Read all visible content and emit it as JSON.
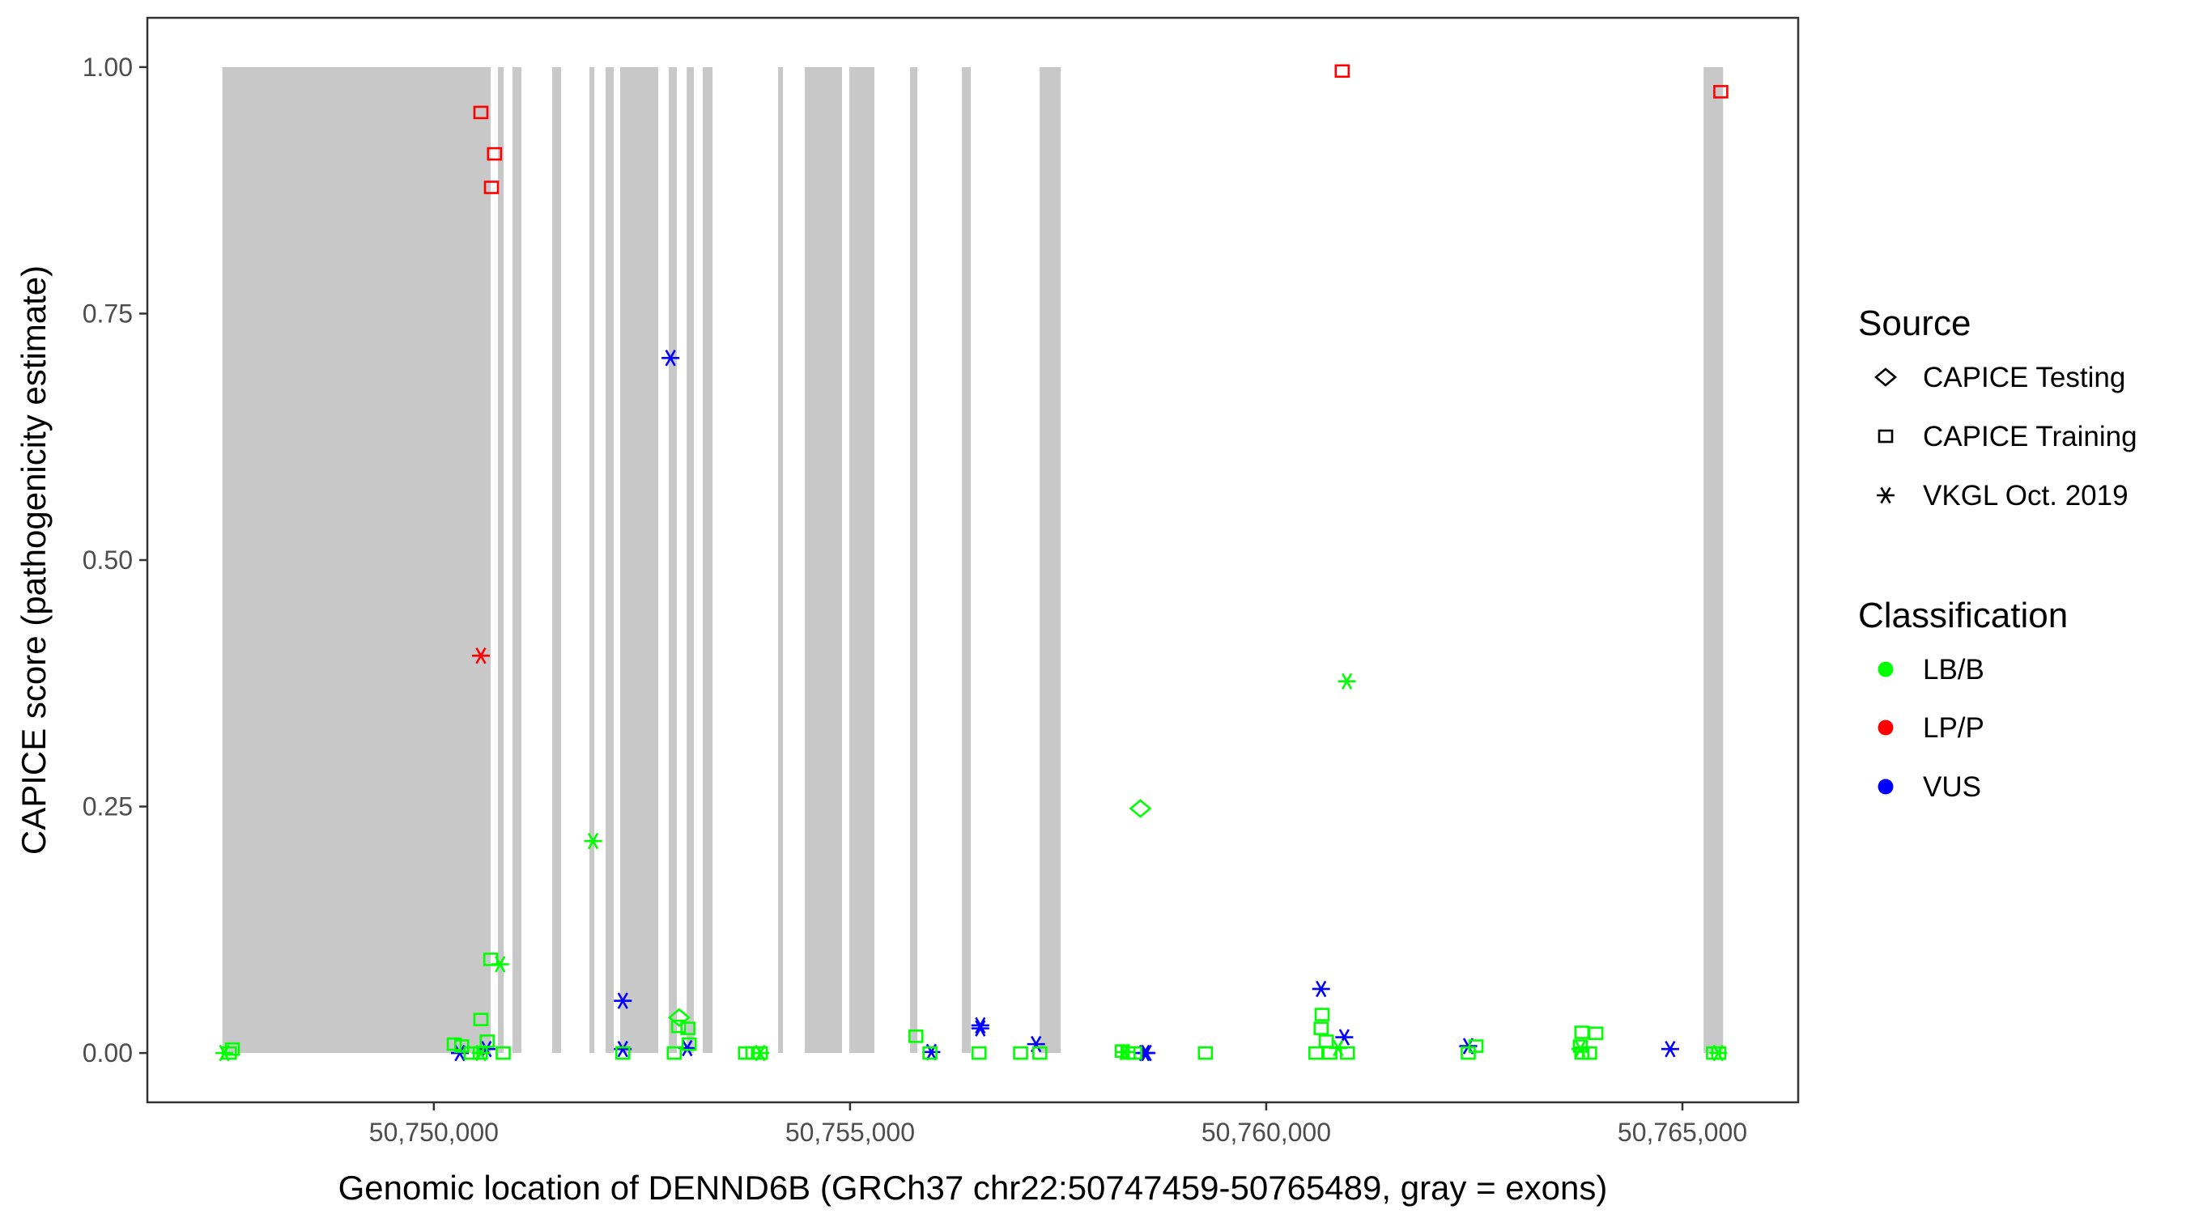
{
  "chart_data": {
    "type": "scatter",
    "title": "",
    "xlabel": "Genomic location of DENND6B (GRCh37 chr22:50747459-50765489, gray = exons)",
    "ylabel": "CAPICE score (pathogenicity estimate)",
    "xlim": [
      50746558,
      50766391
    ],
    "ylim": [
      -0.05,
      1.05
    ],
    "x_ticks": [
      50750000,
      50755000,
      50760000,
      50765000
    ],
    "x_tick_labels": [
      "50,750,000",
      "50,755,000",
      "50,760,000",
      "50,765,000"
    ],
    "y_ticks": [
      0,
      0.25,
      0.5,
      0.75,
      1.0
    ],
    "y_tick_labels": [
      "0.00",
      "0.25",
      "0.50",
      "0.75",
      "1.00"
    ],
    "grid": false,
    "legend_placement": "right",
    "exon_color": "#c8c8c8",
    "exons": [
      [
        50747459,
        50750683
      ],
      [
        50750770,
        50750838
      ],
      [
        50750945,
        50751052
      ],
      [
        50751422,
        50751529
      ],
      [
        50751869,
        50751928
      ],
      [
        50752064,
        50752161
      ],
      [
        50752239,
        50752696
      ],
      [
        50752823,
        50752920
      ],
      [
        50753037,
        50753124
      ],
      [
        50753231,
        50753348
      ],
      [
        50754136,
        50754194
      ],
      [
        50754457,
        50754904
      ],
      [
        50754992,
        50755293
      ],
      [
        50755721,
        50755809
      ],
      [
        50756344,
        50756451
      ],
      [
        50757278,
        50757531
      ],
      [
        50765254,
        50765489
      ]
    ],
    "legend": {
      "source_title": "Source",
      "sources": [
        {
          "key": "testing",
          "label": "CAPICE Testing",
          "shape": "diamond"
        },
        {
          "key": "training",
          "label": "CAPICE Training",
          "shape": "square"
        },
        {
          "key": "vkgl",
          "label": "VKGL Oct. 2019",
          "shape": "asterisk"
        }
      ],
      "class_title": "Classification",
      "classes": [
        {
          "key": "LB/B",
          "label": "LB/B",
          "color": "#00ff00"
        },
        {
          "key": "LP/P",
          "label": "LP/P",
          "color": "#ff0000"
        },
        {
          "key": "VUS",
          "label": "VUS",
          "color": "#0000ff"
        }
      ]
    },
    "points": [
      [
        50750565,
        0.954,
        "training",
        "LP/P"
      ],
      [
        50750729,
        0.912,
        "training",
        "LP/P"
      ],
      [
        50750692,
        0.878,
        "training",
        "LP/P"
      ],
      [
        50760913,
        0.996,
        "training",
        "LP/P"
      ],
      [
        50765461,
        0.975,
        "training",
        "LP/P"
      ],
      [
        50750565,
        0.403,
        "vkgl",
        "LP/P"
      ],
      [
        50752843,
        0.705,
        "vkgl",
        "VUS"
      ],
      [
        50752270,
        0.053,
        "vkgl",
        "VUS"
      ],
      [
        50750312,
        0.0,
        "vkgl",
        "VUS"
      ],
      [
        50750632,
        0.004,
        "vkgl",
        "VUS"
      ],
      [
        50752270,
        0.004,
        "vkgl",
        "VUS"
      ],
      [
        50753044,
        0.005,
        "vkgl",
        "VUS"
      ],
      [
        50755977,
        0.001,
        "vkgl",
        "VUS"
      ],
      [
        50756565,
        0.028,
        "vkgl",
        "VUS"
      ],
      [
        50756565,
        0.025,
        "vkgl",
        "VUS"
      ],
      [
        50757235,
        0.009,
        "vkgl",
        "VUS"
      ],
      [
        50758537,
        0.0,
        "vkgl",
        "VUS"
      ],
      [
        50758562,
        0.0,
        "vkgl",
        "VUS"
      ],
      [
        50760659,
        0.065,
        "vkgl",
        "VUS"
      ],
      [
        50760938,
        0.016,
        "vkgl",
        "VUS"
      ],
      [
        50762427,
        0.007,
        "vkgl",
        "VUS"
      ],
      [
        50764853,
        0.004,
        "vkgl",
        "VUS"
      ],
      [
        50751913,
        0.215,
        "vkgl",
        "LB/B"
      ],
      [
        50750796,
        0.09,
        "vkgl",
        "LB/B"
      ],
      [
        50747483,
        0.0,
        "vkgl",
        "LB/B"
      ],
      [
        50750565,
        0.0,
        "vkgl",
        "LB/B"
      ],
      [
        50753922,
        0.0,
        "vkgl",
        "LB/B"
      ],
      [
        50758300,
        0.001,
        "vkgl",
        "LB/B"
      ],
      [
        50760969,
        0.377,
        "vkgl",
        "LB/B"
      ],
      [
        50760864,
        0.005,
        "vkgl",
        "LB/B"
      ],
      [
        50763774,
        0.004,
        "vkgl",
        "LB/B"
      ],
      [
        50765430,
        0.0,
        "vkgl",
        "LB/B"
      ],
      [
        50752947,
        0.036,
        "testing",
        "LB/B"
      ],
      [
        50758488,
        0.248,
        "testing",
        "LB/B"
      ],
      [
        50750684,
        0.095,
        "training",
        "LB/B"
      ],
      [
        50750565,
        0.034,
        "training",
        "LB/B"
      ],
      [
        50752940,
        0.027,
        "training",
        "LB/B"
      ],
      [
        50753052,
        0.025,
        "training",
        "LB/B"
      ],
      [
        50747580,
        0.004,
        "training",
        "LB/B"
      ],
      [
        50747543,
        0.0,
        "training",
        "LB/B"
      ],
      [
        50750245,
        0.009,
        "training",
        "LB/B"
      ],
      [
        50750335,
        0.007,
        "training",
        "LB/B"
      ],
      [
        50750446,
        0.0,
        "training",
        "LB/B"
      ],
      [
        50750558,
        0.0,
        "training",
        "LB/B"
      ],
      [
        50750640,
        0.012,
        "training",
        "LB/B"
      ],
      [
        50750833,
        0.0,
        "training",
        "LB/B"
      ],
      [
        50752270,
        0.0,
        "training",
        "LB/B"
      ],
      [
        50752888,
        0.0,
        "training",
        "LB/B"
      ],
      [
        50753067,
        0.009,
        "training",
        "LB/B"
      ],
      [
        50753744,
        0.0,
        "training",
        "LB/B"
      ],
      [
        50753833,
        0.0,
        "training",
        "LB/B"
      ],
      [
        50753922,
        0.0,
        "training",
        "LB/B"
      ],
      [
        50755791,
        0.017,
        "training",
        "LB/B"
      ],
      [
        50755960,
        0.0,
        "training",
        "LB/B"
      ],
      [
        50756550,
        0.0,
        "training",
        "LB/B"
      ],
      [
        50757049,
        0.0,
        "training",
        "LB/B"
      ],
      [
        50757280,
        0.0,
        "training",
        "LB/B"
      ],
      [
        50758270,
        0.002,
        "training",
        "LB/B"
      ],
      [
        50758340,
        0.0,
        "training",
        "LB/B"
      ],
      [
        50758420,
        0.0,
        "training",
        "LB/B"
      ],
      [
        50759269,
        0.0,
        "training",
        "LB/B"
      ],
      [
        50760671,
        0.039,
        "training",
        "LB/B"
      ],
      [
        50760659,
        0.025,
        "training",
        "LB/B"
      ],
      [
        50760721,
        0.012,
        "training",
        "LB/B"
      ],
      [
        50760597,
        0.0,
        "training",
        "LB/B"
      ],
      [
        50760765,
        0.0,
        "training",
        "LB/B"
      ],
      [
        50760976,
        0.0,
        "training",
        "LB/B"
      ],
      [
        50762520,
        0.007,
        "training",
        "LB/B"
      ],
      [
        50762427,
        0.0,
        "training",
        "LB/B"
      ],
      [
        50763792,
        0.021,
        "training",
        "LB/B"
      ],
      [
        50763960,
        0.02,
        "training",
        "LB/B"
      ],
      [
        50763774,
        0.007,
        "training",
        "LB/B"
      ],
      [
        50763885,
        0.0,
        "training",
        "LB/B"
      ],
      [
        50763792,
        0.0,
        "training",
        "LB/B"
      ],
      [
        50765374,
        0.0,
        "training",
        "LB/B"
      ],
      [
        50765436,
        0.0,
        "training",
        "LB/B"
      ]
    ]
  }
}
